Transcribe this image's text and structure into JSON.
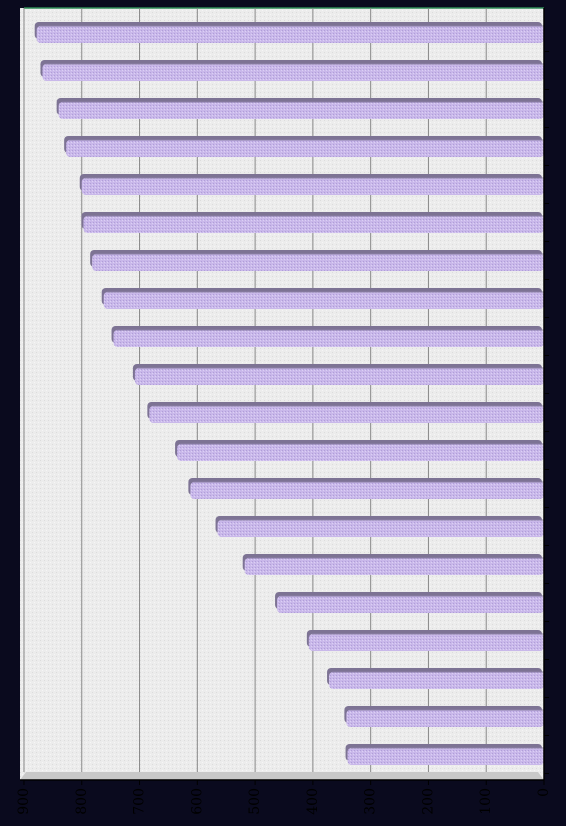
{
  "chart_data": {
    "type": "bar",
    "orientation": "horizontal",
    "title": "",
    "xlabel": "",
    "ylabel": "",
    "xlim": [
      0,
      900
    ],
    "x_ticks": [
      0,
      100,
      200,
      300,
      400,
      500,
      600,
      700,
      800,
      900
    ],
    "tick_label_rotation": "vertical",
    "grid": true,
    "legend": "none",
    "bar_color": "#c9b8ea",
    "bar_shadow_color": "#7d7394",
    "plot_background": "#ececec",
    "grid_color": "#888888",
    "frame_color": "#0a0a1e",
    "categories": [
      "",
      "",
      "",
      "",
      "",
      "",
      "",
      "",
      "",
      "",
      "",
      "",
      "",
      "",
      "",
      "",
      "",
      "",
      "",
      ""
    ],
    "values": [
      878,
      868,
      840,
      827,
      800,
      797,
      782,
      762,
      745,
      708,
      683,
      635,
      612,
      565,
      518,
      462,
      407,
      372,
      342,
      340
    ]
  }
}
